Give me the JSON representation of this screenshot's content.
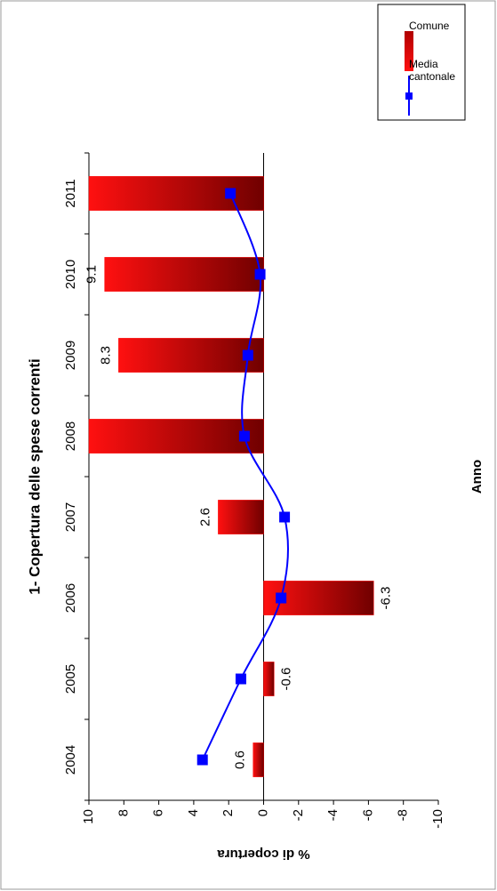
{
  "chart_data": {
    "type": "bar",
    "title": "1- Copertura delle spese correnti",
    "x_label": "Anno",
    "y_label": "% di copertura",
    "categories": [
      "2004",
      "2005",
      "2006",
      "2007",
      "2008",
      "2009",
      "2010",
      "2011"
    ],
    "series": [
      {
        "name": "Comune",
        "type": "bar",
        "color": "#ff0000",
        "values": [
          0.6,
          -0.6,
          -6.3,
          2.6,
          10,
          8.3,
          9.1,
          10
        ],
        "value_labels": [
          "0.6",
          "-0.6",
          "-6.3",
          "2.6",
          null,
          "8.3",
          "9.1",
          null
        ]
      },
      {
        "name": "Media cantonale",
        "type": "line",
        "color": "#0000ff",
        "values": [
          3.5,
          1.3,
          -1.0,
          -1.2,
          1.1,
          0.9,
          0.2,
          1.9
        ]
      }
    ],
    "ylim": [
      -10,
      10
    ],
    "yticks": [
      10,
      8,
      6,
      4,
      2,
      0,
      -2,
      -4,
      -6,
      -8,
      -10
    ],
    "legend": "right"
  }
}
